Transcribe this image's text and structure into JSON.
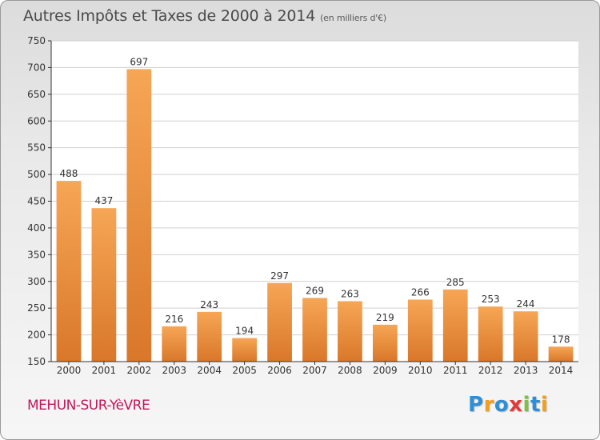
{
  "title": "Autres Impôts et Taxes de 2000 à 2014",
  "unit_note": "(en milliers d'€)",
  "commune": "MEHUN-SUR-YèVRE",
  "logo": {
    "text": "Proxiti",
    "letters": [
      {
        "char": "P",
        "color": "#2e8fd6"
      },
      {
        "char": "r",
        "color": "#f0a020"
      },
      {
        "char": "o",
        "color": "#2e8fd6"
      },
      {
        "char": "x",
        "color": "#e23a3a"
      },
      {
        "char": "i",
        "color": "#7cc142"
      },
      {
        "char": "t",
        "color": "#2e8fd6"
      },
      {
        "char": "i",
        "color": "#f0a020"
      }
    ]
  },
  "colors": {
    "bar_light": "#f6a655",
    "bar_dark": "#d9772a",
    "grid": "#cfcfcf",
    "axis": "#333333",
    "text": "#333333"
  },
  "chart_data": {
    "type": "bar",
    "categories": [
      "2000",
      "2001",
      "2002",
      "2003",
      "2004",
      "2005",
      "2006",
      "2007",
      "2008",
      "2009",
      "2010",
      "2011",
      "2012",
      "2013",
      "2014"
    ],
    "values": [
      488,
      437,
      697,
      216,
      243,
      194,
      297,
      269,
      263,
      219,
      266,
      285,
      253,
      244,
      178
    ],
    "ylim": [
      150,
      750
    ],
    "yticks": [
      150,
      200,
      250,
      300,
      350,
      400,
      450,
      500,
      550,
      600,
      650,
      700,
      750
    ],
    "grid": true,
    "data_labels": true
  }
}
